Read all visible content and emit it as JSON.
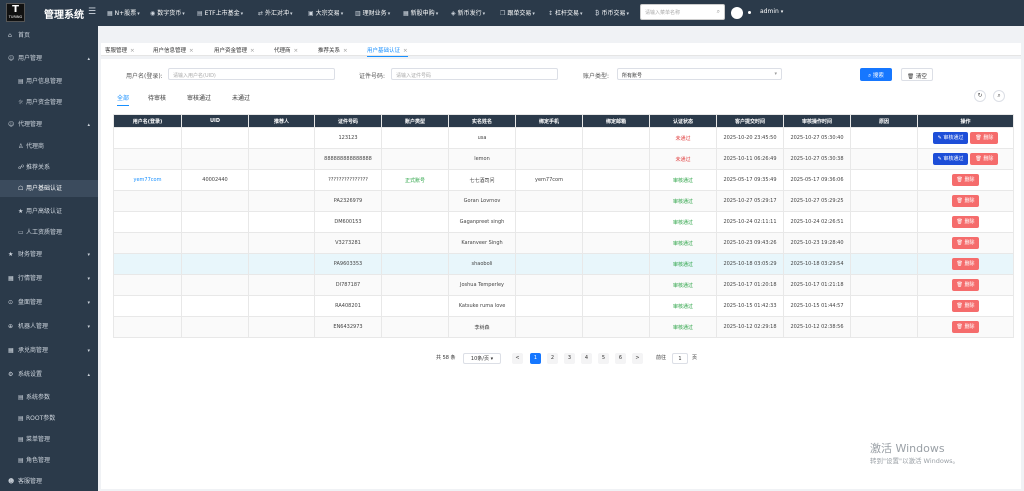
{
  "app": {
    "logo_letter": "T",
    "logo_text": "TURING",
    "title": "管理系统",
    "admin": "admin"
  },
  "topnav": [
    {
      "label": "N+股票"
    },
    {
      "label": "数字货币"
    },
    {
      "label": "ETF上市基金"
    },
    {
      "label": "外汇对冲"
    },
    {
      "label": "大宗交易"
    },
    {
      "label": "理财业务"
    },
    {
      "label": "新股申购"
    },
    {
      "label": "新币发行"
    },
    {
      "label": "跟单交易"
    },
    {
      "label": "杠杆交易"
    },
    {
      "label": "币币交易"
    }
  ],
  "search": {
    "placeholder": "请输入菜单名称"
  },
  "sidebar": [
    {
      "label": "首页"
    },
    {
      "label": "用户管理"
    },
    {
      "label": "用户信息管理"
    },
    {
      "label": "用户资金管理"
    },
    {
      "label": "代理管理"
    },
    {
      "label": "代理商"
    },
    {
      "label": "推荐关系"
    },
    {
      "label": "用户基础认证"
    },
    {
      "label": "用户高级认证"
    },
    {
      "label": "人工资质管理"
    },
    {
      "label": "财务管理"
    },
    {
      "label": "行情管理"
    },
    {
      "label": "盘面管理"
    },
    {
      "label": "机器人管理"
    },
    {
      "label": "承兑商管理"
    },
    {
      "label": "系统设置"
    },
    {
      "label": "系统参数"
    },
    {
      "label": "ROOT参数"
    },
    {
      "label": "菜单管理"
    },
    {
      "label": "角色管理"
    },
    {
      "label": "客服管理"
    }
  ],
  "tabs": [
    {
      "label": "客服管理"
    },
    {
      "label": "用户信息管理"
    },
    {
      "label": "用户资金管理"
    },
    {
      "label": "代理商"
    },
    {
      "label": "推荐关系"
    },
    {
      "label": "用户基础认证"
    }
  ],
  "filters": {
    "username_label": "用户名(登录):",
    "username_placeholder": "请输入用户名(UID)",
    "cert_label": "证件号码:",
    "cert_placeholder": "请输入证件号码",
    "account_label": "账户类型:",
    "account_value": "所有账号",
    "search_btn": "搜索",
    "clear_btn": "清空"
  },
  "status_tabs": [
    {
      "label": "全部"
    },
    {
      "label": "待审核"
    },
    {
      "label": "审核通过"
    },
    {
      "label": "未通过"
    }
  ],
  "table": {
    "headers": [
      "用户名(登录)",
      "UID",
      "推荐人",
      "证件号码",
      "账户类型",
      "实名姓名",
      "绑定手机",
      "绑定邮箱",
      "认证状态",
      "客户提交时间",
      "审核操作时间",
      "原因",
      "操作"
    ],
    "rows": [
      {
        "user": "",
        "uid": "",
        "ref": "",
        "cert": "123123",
        "acct": "",
        "name": "usa",
        "phone": "",
        "email": "",
        "status": "未通过",
        "submit": "2025-10-20 23:45:50",
        "review": "2025-10-27 05:30:40",
        "reason": "",
        "approve": "审核通过",
        "del": "删除"
      },
      {
        "user": "",
        "uid": "",
        "ref": "",
        "cert": "888888888888888",
        "acct": "",
        "name": "lemon",
        "phone": "",
        "email": "",
        "status": "未通过",
        "submit": "2025-10-11 06:26:49",
        "review": "2025-10-27 05:30:38",
        "reason": "",
        "approve": "审核通过",
        "del": "删除"
      },
      {
        "user": "yem77com",
        "uid": "40002440",
        "ref": "",
        "cert": "???????????????",
        "acct": "正式账号",
        "name": "七七酒司问",
        "phone": "yem77com",
        "email": "",
        "status": "审核通过",
        "submit": "2025-05-17 09:35:49",
        "review": "2025-05-17 09:36:06",
        "reason": "",
        "approve": "",
        "del": "删除"
      },
      {
        "user": "",
        "uid": "",
        "ref": "",
        "cert": "PA2326979",
        "acct": "",
        "name": "Goran Lovrnov",
        "phone": "",
        "email": "",
        "status": "审核通过",
        "submit": "2025-10-27 05:29:17",
        "review": "2025-10-27 05:29:25",
        "reason": "",
        "approve": "",
        "del": "删除"
      },
      {
        "user": "",
        "uid": "",
        "ref": "",
        "cert": "DM600153",
        "acct": "",
        "name": "Gaganpreet singh",
        "phone": "",
        "email": "",
        "status": "审核通过",
        "submit": "2025-10-24 02:11:11",
        "review": "2025-10-24 02:26:51",
        "reason": "",
        "approve": "",
        "del": "删除"
      },
      {
        "user": "",
        "uid": "",
        "ref": "",
        "cert": "V3273281",
        "acct": "",
        "name": "Karanveer Singh",
        "phone": "",
        "email": "",
        "status": "审核通过",
        "submit": "2025-10-23 09:43:26",
        "review": "2025-10-23 19:28:40",
        "reason": "",
        "approve": "",
        "del": "删除"
      },
      {
        "user": "",
        "uid": "",
        "ref": "",
        "cert": "PA9603353",
        "acct": "",
        "name": "shaoboli",
        "phone": "",
        "email": "",
        "status": "审核通过",
        "submit": "2025-10-18 03:05:29",
        "review": "2025-10-18 03:29:54",
        "reason": "",
        "approve": "",
        "del": "删除"
      },
      {
        "user": "",
        "uid": "",
        "ref": "",
        "cert": "DI787187",
        "acct": "",
        "name": "Joshua Temperley",
        "phone": "",
        "email": "",
        "status": "审核通过",
        "submit": "2025-10-17 01:20:18",
        "review": "2025-10-17 01:21:18",
        "reason": "",
        "approve": "",
        "del": "删除"
      },
      {
        "user": "",
        "uid": "",
        "ref": "",
        "cert": "RA408201",
        "acct": "",
        "name": "Katsuke ruma love",
        "phone": "",
        "email": "",
        "status": "审核通过",
        "submit": "2025-10-15 01:42:33",
        "review": "2025-10-15 01:44:57",
        "reason": "",
        "approve": "",
        "del": "删除"
      },
      {
        "user": "",
        "uid": "",
        "ref": "",
        "cert": "EN6432973",
        "acct": "",
        "name": "李树森",
        "phone": "",
        "email": "",
        "status": "审核通过",
        "submit": "2025-10-12 02:29:18",
        "review": "2025-10-12 02:38:56",
        "reason": "",
        "approve": "",
        "del": "删除"
      }
    ]
  },
  "pagination": {
    "total": "共 58 条",
    "page_size": "10条/页",
    "prev": "<",
    "next": ">",
    "pages": [
      "1",
      "2",
      "3",
      "4",
      "5",
      "6"
    ],
    "goto_label": "前往",
    "goto_value": "1",
    "goto_suffix": "页"
  },
  "watermark": {
    "line1": "激活 Windows",
    "line2": "转到\"设置\"以激活 Windows。"
  },
  "colors": {
    "topbar": "#2b3a4a",
    "accent": "#1677ff",
    "danger": "#f56c6c",
    "approve": "#1d4ed8",
    "pass_green": "#2aa345",
    "fail_red": "#e03c3c"
  }
}
